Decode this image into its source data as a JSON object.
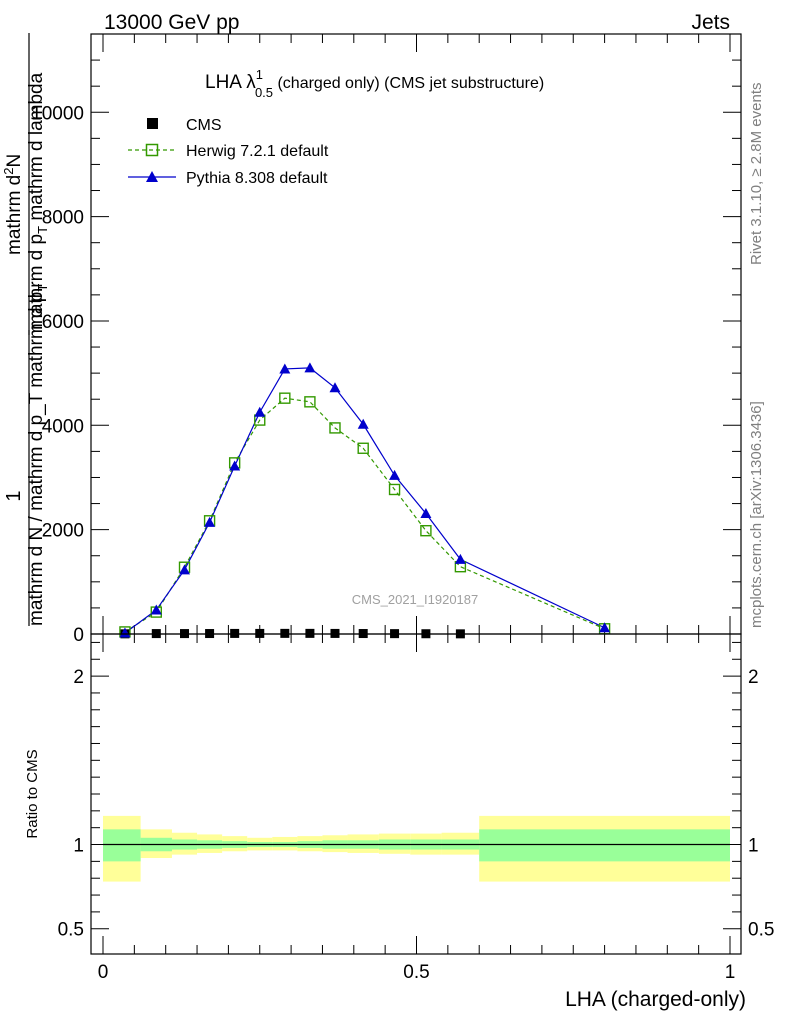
{
  "header": {
    "left": "13000 GeV pp",
    "right": "Jets"
  },
  "side_labels": {
    "rivet": "Rivet 3.1.10, ≥ 2.8M events",
    "mcplots": "mcplots.cern.ch [arXiv:1306.3436]"
  },
  "watermark": "CMS_2021_I1920187",
  "chart_data": [
    {
      "type": "scatter",
      "title": {
        "main": "LHA λ",
        "sup": "1",
        "sub": "0.5",
        "rest": " (charged only) (CMS jet substructure)"
      },
      "ylabel": {
        "numer": "1",
        "denom": "mathrm d N / mathrm d p_T mathrm d p",
        "denom_sub": "T",
        "right_numer": "mathrm d",
        "right_numer_sup": "2",
        "right_numer_tail": "N",
        "right_denom": "mathrm d p",
        "right_denom_sub": "T",
        "right_denom_tail": " mathrm d lambda"
      },
      "xlim": [
        0,
        1
      ],
      "ylim": [
        0,
        11500
      ],
      "yticks": [
        {
          "value": 0,
          "label": "0"
        },
        {
          "value": 2000,
          "label": "2000"
        },
        {
          "value": 4000,
          "label": "4000"
        },
        {
          "value": 6000,
          "label": "6000"
        },
        {
          "value": 8000,
          "label": "8000"
        },
        {
          "value": 10000,
          "label": "10000"
        }
      ],
      "legend_position": "top-left",
      "series": [
        {
          "name": "CMS",
          "marker": "square-filled",
          "color": "#000000",
          "x": [
            0.035,
            0.085,
            0.13,
            0.17,
            0.21,
            0.25,
            0.29,
            0.33,
            0.37,
            0.415,
            0.465,
            0.515,
            0.57
          ],
          "y": [
            3,
            8,
            8,
            9,
            11,
            11,
            12,
            12,
            11,
            9,
            7,
            5,
            3
          ]
        },
        {
          "name": "Herwig 7.2.1 default",
          "marker": "square-open",
          "line": "dashed",
          "color": "#339900",
          "x": [
            0.035,
            0.085,
            0.13,
            0.17,
            0.21,
            0.25,
            0.29,
            0.33,
            0.37,
            0.415,
            0.465,
            0.515,
            0.57,
            0.8
          ],
          "y": [
            40,
            420,
            1280,
            2170,
            3280,
            4100,
            4520,
            4450,
            3950,
            3560,
            2770,
            1980,
            1290,
            100
          ]
        },
        {
          "name": "Pythia 8.308 default",
          "marker": "triangle-filled",
          "line": "solid",
          "color": "#0000cc",
          "x": [
            0.035,
            0.085,
            0.13,
            0.17,
            0.21,
            0.25,
            0.29,
            0.33,
            0.37,
            0.415,
            0.465,
            0.515,
            0.57,
            0.8
          ],
          "y": [
            20,
            460,
            1230,
            2140,
            3220,
            4250,
            5080,
            5100,
            4720,
            4020,
            3040,
            2310,
            1430,
            120
          ]
        }
      ]
    },
    {
      "type": "ratio",
      "ylabel": "Ratio to CMS",
      "xlabel": "LHA (charged-only)",
      "xlim": [
        0,
        1
      ],
      "ylim": [
        0.35,
        2.25
      ],
      "yticks": [
        {
          "value": 0.5,
          "label": "0.5"
        },
        {
          "value": 1,
          "label": "1"
        },
        {
          "value": 2,
          "label": "2"
        }
      ],
      "xticks": [
        {
          "value": 0,
          "label": "0"
        },
        {
          "value": 0.5,
          "label": "0.5"
        },
        {
          "value": 1,
          "label": "1"
        }
      ],
      "band_colors": {
        "outer": "#ffff99",
        "inner": "#99ff99"
      },
      "bands": [
        {
          "x0": 0.0,
          "x1": 0.06,
          "outer_lo": 0.78,
          "outer_hi": 1.17,
          "inner_lo": 0.9,
          "inner_hi": 1.09
        },
        {
          "x0": 0.06,
          "x1": 0.11,
          "outer_lo": 0.92,
          "outer_hi": 1.09,
          "inner_lo": 0.96,
          "inner_hi": 1.04
        },
        {
          "x0": 0.11,
          "x1": 0.15,
          "outer_lo": 0.94,
          "outer_hi": 1.07,
          "inner_lo": 0.97,
          "inner_hi": 1.03
        },
        {
          "x0": 0.15,
          "x1": 0.19,
          "outer_lo": 0.95,
          "outer_hi": 1.06,
          "inner_lo": 0.975,
          "inner_hi": 1.025
        },
        {
          "x0": 0.19,
          "x1": 0.23,
          "outer_lo": 0.96,
          "outer_hi": 1.05,
          "inner_lo": 0.98,
          "inner_hi": 1.02
        },
        {
          "x0": 0.23,
          "x1": 0.27,
          "outer_lo": 0.965,
          "outer_hi": 1.04,
          "inner_lo": 0.985,
          "inner_hi": 1.015
        },
        {
          "x0": 0.27,
          "x1": 0.31,
          "outer_lo": 0.965,
          "outer_hi": 1.045,
          "inner_lo": 0.985,
          "inner_hi": 1.015
        },
        {
          "x0": 0.31,
          "x1": 0.35,
          "outer_lo": 0.96,
          "outer_hi": 1.05,
          "inner_lo": 0.98,
          "inner_hi": 1.02
        },
        {
          "x0": 0.35,
          "x1": 0.39,
          "outer_lo": 0.955,
          "outer_hi": 1.055,
          "inner_lo": 0.975,
          "inner_hi": 1.025
        },
        {
          "x0": 0.39,
          "x1": 0.44,
          "outer_lo": 0.95,
          "outer_hi": 1.06,
          "inner_lo": 0.975,
          "inner_hi": 1.025
        },
        {
          "x0": 0.44,
          "x1": 0.49,
          "outer_lo": 0.945,
          "outer_hi": 1.065,
          "inner_lo": 0.97,
          "inner_hi": 1.03
        },
        {
          "x0": 0.49,
          "x1": 0.54,
          "outer_lo": 0.94,
          "outer_hi": 1.065,
          "inner_lo": 0.97,
          "inner_hi": 1.03
        },
        {
          "x0": 0.54,
          "x1": 0.6,
          "outer_lo": 0.94,
          "outer_hi": 1.07,
          "inner_lo": 0.97,
          "inner_hi": 1.03
        },
        {
          "x0": 0.6,
          "x1": 1.0,
          "outer_lo": 0.78,
          "outer_hi": 1.17,
          "inner_lo": 0.9,
          "inner_hi": 1.09
        }
      ]
    }
  ]
}
